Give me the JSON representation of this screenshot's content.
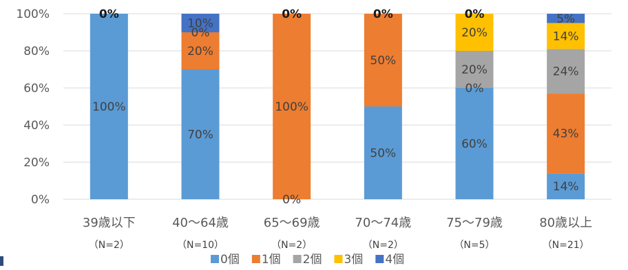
{
  "chart_data": {
    "type": "bar",
    "stacked": true,
    "title": "",
    "xlabel": "",
    "ylabel": "",
    "ylim": [
      0,
      100
    ],
    "yticks": [
      "0%",
      "20%",
      "40%",
      "60%",
      "80%",
      "100%"
    ],
    "grid": true,
    "legend_position": "bottom",
    "categories": [
      "39歳以下",
      "40～64歳",
      "65～69歳",
      "70～74歳",
      "75～79歳",
      "80歳以上"
    ],
    "sample_sizes": [
      "（N=2）",
      "（N=10）",
      "（N=2）",
      "（N=2）",
      "（N=5）",
      "（N=21）"
    ],
    "series": [
      {
        "name": "0個",
        "color": "#5b9bd5",
        "values": [
          100,
          70,
          0,
          50,
          60,
          14
        ]
      },
      {
        "name": "1個",
        "color": "#ed7d31",
        "values": [
          0,
          20,
          100,
          50,
          0,
          43
        ]
      },
      {
        "name": "2個",
        "color": "#a5a5a5",
        "values": [
          0,
          0,
          0,
          0,
          20,
          24
        ]
      },
      {
        "name": "3個",
        "color": "#ffc000",
        "values": [
          0,
          0,
          0,
          0,
          20,
          14
        ]
      },
      {
        "name": "4個",
        "color": "#4472c4",
        "values": [
          0,
          10,
          0,
          0,
          0,
          5
        ]
      }
    ],
    "data_labels": [
      [
        {
          "series": 0,
          "text": "100%"
        },
        {
          "series": 1,
          "text": "0%"
        }
      ],
      [
        {
          "series": 0,
          "text": "70%"
        },
        {
          "series": 1,
          "text": "20%"
        },
        {
          "series": 2,
          "text": "0%"
        },
        {
          "series": 4,
          "text": "10%"
        }
      ],
      [
        {
          "series": 0,
          "text": "0%"
        },
        {
          "series": 1,
          "text": "100%"
        },
        {
          "series": 4,
          "text": "0%"
        }
      ],
      [
        {
          "series": 0,
          "text": "50%"
        },
        {
          "series": 1,
          "text": "50%"
        },
        {
          "series": 4,
          "text": "0%"
        }
      ],
      [
        {
          "series": 0,
          "text": "60%"
        },
        {
          "series": 1,
          "text": "0%"
        },
        {
          "series": 2,
          "text": "20%"
        },
        {
          "series": 3,
          "text": "20%"
        },
        {
          "series": 4,
          "text": "0%"
        }
      ],
      [
        {
          "series": 0,
          "text": "14%"
        },
        {
          "series": 1,
          "text": "43%"
        },
        {
          "series": 2,
          "text": "24%"
        },
        {
          "series": 3,
          "text": "14%"
        },
        {
          "series": 4,
          "text": "5%"
        }
      ]
    ]
  }
}
